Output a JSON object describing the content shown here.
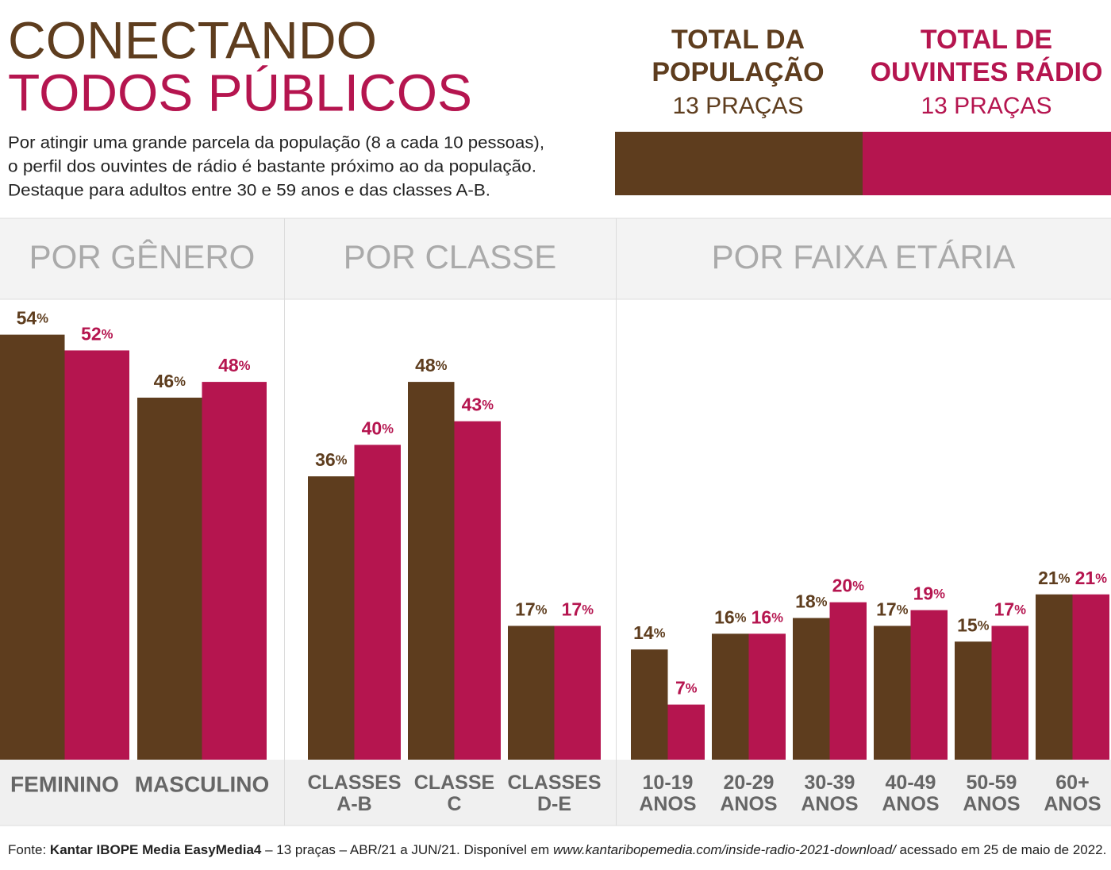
{
  "title_lines": [
    "CONECTANDO",
    "TODOS PÚBLICOS"
  ],
  "description_lines": [
    "Por atingir uma grande parcela da população (8 a cada 10 pessoas),",
    "o perfil dos ouvintes de rádio é bastante próximo ao da população.",
    "Destaque para adultos entre 30 e 59 anos e das classes A-B."
  ],
  "legend": [
    {
      "name_lines": [
        "TOTAL DA",
        "POPULAÇÃO"
      ],
      "subtitle": "13 PRAÇAS",
      "color": "#5e3d1e"
    },
    {
      "name_lines": [
        "TOTAL DE",
        "OUVINTES RÁDIO"
      ],
      "subtitle": "13 PRAÇAS",
      "color": "#b5154f"
    }
  ],
  "chart_data": [
    {
      "type": "bar",
      "title": "POR GÊNERO",
      "ylim": [
        0,
        58.5
      ],
      "categories": [
        "FEMININO",
        "MASCULINO"
      ],
      "series": [
        {
          "values": [
            54,
            46
          ],
          "value_labels": [
            "54%",
            "46%"
          ]
        },
        {
          "values": [
            52,
            48
          ],
          "value_labels": [
            "52%",
            "48%"
          ]
        }
      ]
    },
    {
      "type": "bar",
      "title": "POR CLASSE",
      "ylim": [
        0,
        58.5
      ],
      "categories": [
        "CLASSES A-B",
        "CLASSE C",
        "CLASSES D-E"
      ],
      "series": [
        {
          "values": [
            36,
            48,
            17
          ],
          "value_labels": [
            "36%",
            "48%",
            "17%"
          ]
        },
        {
          "values": [
            40,
            43,
            17
          ],
          "value_labels": [
            "40%",
            "43%",
            "17%"
          ]
        }
      ]
    },
    {
      "type": "bar",
      "title": "POR FAIXA ETÁRIA",
      "ylim": [
        0,
        58.5
      ],
      "categories": [
        "10-19 ANOS",
        "20-29 ANOS",
        "30-39 ANOS",
        "40-49 ANOS",
        "50-59 ANOS",
        "60+ ANOS"
      ],
      "series": [
        {
          "values": [
            14,
            16,
            18,
            17,
            15,
            21
          ],
          "value_labels": [
            "14%",
            "16%",
            "18%",
            "17%",
            "15%",
            "21%"
          ]
        },
        {
          "values": [
            7,
            16,
            20,
            19,
            17,
            21
          ],
          "value_labels": [
            "7%",
            "16%",
            "20%",
            "19%",
            "17%",
            "21%"
          ]
        }
      ]
    }
  ],
  "footer": [
    {
      "text": "Fonte: ",
      "style": "normal"
    },
    {
      "text": "Kantar IBOPE Media EasyMedia4",
      "style": "bold"
    },
    {
      "text": " – 13 praças – ABR/21 a JUN/21. Disponível em ",
      "style": "normal"
    },
    {
      "text": "www.kantaribopemedia.com/inside-radio-2021-download/",
      "style": "italic"
    },
    {
      "text": " acessado em 25 de maio de 2022.",
      "style": "normal"
    }
  ]
}
